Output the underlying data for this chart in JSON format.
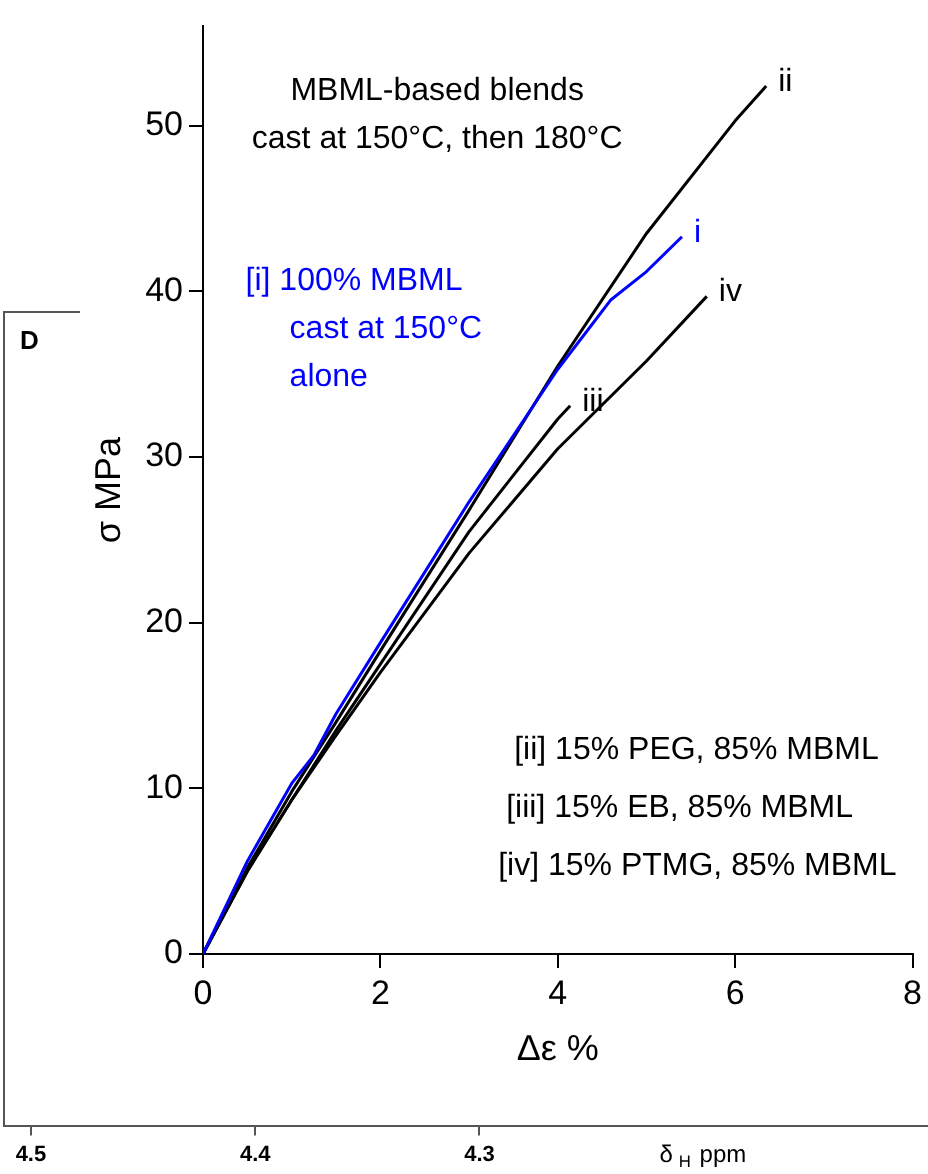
{
  "chart_data": [
    {
      "type": "line",
      "xlabel": "Δε %",
      "ylabel": "σ MPa",
      "xlim": [
        0,
        8
      ],
      "xticks": [
        0,
        2,
        4,
        6,
        8
      ],
      "ylim": [
        0,
        56
      ],
      "yticks": [
        0,
        10,
        20,
        30,
        40,
        50
      ],
      "grid": false,
      "legend": false,
      "marker": "none",
      "line_style": "solid",
      "annotations": [
        "MBML-based blends\ncast at 150°C, then 180°C",
        "[i] 100% MBML\ncast at 150°C\nalone",
        "[ii] 15% PEG, 85% MBML\n[iii] 15% EB, 85% MBML\n[iv] 15% PTMG, 85% MBML"
      ],
      "series": [
        {
          "name": "i",
          "color": "#0000ff",
          "x": [
            0,
            0.5,
            1,
            1.25,
            1.5,
            2,
            3,
            4,
            4.6,
            5,
            5.4
          ],
          "values": [
            0,
            5.6,
            10.3,
            12,
            14.5,
            18.8,
            27.3,
            35.3,
            39.5,
            41.2,
            43.3
          ]
        },
        {
          "name": "ii",
          "color": "#000000",
          "x": [
            0,
            0.5,
            1,
            1.5,
            2,
            3,
            4,
            5,
            6,
            6.35
          ],
          "values": [
            0,
            5.2,
            9.8,
            14,
            18.3,
            26.8,
            35.5,
            43.5,
            50.3,
            52.4
          ]
        },
        {
          "name": "iii",
          "color": "#000000",
          "x": [
            0,
            0.5,
            1,
            1.5,
            2,
            3,
            4,
            4.14
          ],
          "values": [
            0,
            5,
            9.3,
            13.5,
            17.5,
            25.5,
            32.3,
            33.1
          ]
        },
        {
          "name": "iv",
          "color": "#000000",
          "x": [
            0,
            0.5,
            1,
            1.5,
            2,
            3,
            4,
            5,
            5.68
          ],
          "values": [
            0,
            5,
            9.3,
            13.2,
            17,
            24.2,
            30.5,
            35.8,
            39.7
          ]
        }
      ]
    },
    {
      "type": "other",
      "title": "D",
      "xlabel": "δ$_{H}$ ppm",
      "annotations": [
        "4.5",
        "4.4",
        "4.3"
      ]
    }
  ]
}
